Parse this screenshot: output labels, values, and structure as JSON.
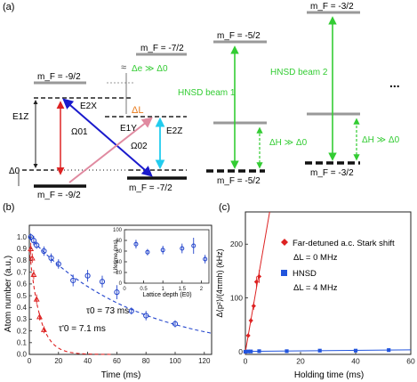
{
  "panel_a": {
    "label": "(a)",
    "levels": {
      "mf_m92_top": "m_F = -9/2",
      "mf_m72_top": "m_F = -7/2",
      "mf_m52_top": "m_F = -5/2",
      "mf_m32_top": "m_F = -3/2",
      "mf_m92_bot": "m_F = -9/2",
      "mf_m72_bot": "m_F = -7/2",
      "mf_m52_bot": "m_F = -5/2",
      "mf_m32_bot": "m_F = -3/2"
    },
    "labels": {
      "delta_e": "Δe ≫ Δ0",
      "delta_l": "ΔL",
      "e1z": "E1Z",
      "e2x": "E2X",
      "e1y": "E1Y",
      "e2z": "E2Z",
      "omega01": "Ω01",
      "omega02": "Ω02",
      "delta0": "Δ0",
      "hnsd1": "HNSD beam 1",
      "hnsd2": "HNSD beam 2",
      "delta_h1": "ΔH ≫ Δ0",
      "delta_h2": "ΔH ≫ Δ0",
      "ellipsis": "..."
    },
    "colors": {
      "green": "#33cc33",
      "blue": "#1a1acc",
      "pink": "#e08aa0",
      "red": "#dd2222",
      "cyan": "#22ccee",
      "orange": "#e87a1a"
    }
  },
  "panel_b": {
    "label": "(b)",
    "ylabel": "Atom number (a.u.)",
    "xlabel": "Time (ms)",
    "tau0": "τ0 = 73 ms",
    "tau0p": "τ'0 = 7.1 ms",
    "inset": {
      "ylabel": "Lifetime (ms)",
      "xlabel": "Lattice depth (E0)"
    }
  },
  "panel_c": {
    "label": "(c)",
    "ylabel": "Δ⟨p²⟩/(4πmh) (kHz)",
    "xlabel": "Holding time (ms)",
    "legend1_title": "Far-detuned a.c. Stark shift",
    "legend1_sub": "ΔL = 0 MHz",
    "legend2_title": "HNSD",
    "legend2_sub": "ΔL = 4 MHz"
  },
  "chart_data": [
    {
      "type": "scatter",
      "panel": "b",
      "xlabel": "Time (ms)",
      "ylabel": "Atom number (a.u.)",
      "xlim": [
        0,
        125
      ],
      "ylim": [
        0,
        1.1
      ],
      "xticks": [
        0,
        20,
        40,
        60,
        80,
        100,
        120
      ],
      "yticks": [
        0.0,
        0.1,
        0.2,
        0.3,
        0.4,
        0.5,
        0.6,
        0.7,
        0.8,
        0.9,
        1.0
      ],
      "series": [
        {
          "marker": "circle",
          "color": "#2244cc",
          "x": [
            1,
            3,
            5,
            10,
            15,
            20,
            30,
            40,
            50,
            60,
            70,
            80,
            100
          ],
          "y": [
            1.0,
            0.97,
            0.93,
            0.88,
            0.82,
            0.77,
            0.63,
            0.67,
            0.62,
            0.53,
            0.37,
            0.33,
            0.26
          ],
          "err": [
            0.03,
            0.04,
            0.03,
            0.04,
            0.04,
            0.04,
            0.05,
            0.05,
            0.05,
            0.06,
            0.03,
            0.04,
            0.03
          ],
          "fit_tau": 73
        },
        {
          "marker": "triangle",
          "color": "#dd2222",
          "x": [
            1,
            2,
            3,
            5,
            7,
            10
          ],
          "y": [
            0.9,
            0.82,
            0.68,
            0.47,
            0.32,
            0.21
          ],
          "err": [
            0.05,
            0.04,
            0.04,
            0.04,
            0.03,
            0.03
          ],
          "fit_tau": 7.1
        }
      ]
    },
    {
      "type": "scatter",
      "panel": "b-inset",
      "xlabel": "Lattice depth (E0)",
      "ylabel": "Lifetime (ms)",
      "xlim": [
        0,
        2.2
      ],
      "ylim": [
        0,
        100
      ],
      "xticks": [
        0,
        0.5,
        1,
        1.5,
        2
      ],
      "yticks": [
        0,
        20,
        40,
        60,
        80,
        100
      ],
      "series": [
        {
          "marker": "circle",
          "color": "#2244cc",
          "x": [
            0.3,
            0.6,
            1.0,
            1.5,
            1.8,
            2.1
          ],
          "y": [
            73,
            58,
            62,
            65,
            70,
            45
          ],
          "err": [
            8,
            6,
            8,
            9,
            15,
            8
          ]
        }
      ]
    },
    {
      "type": "scatter",
      "panel": "c",
      "xlabel": "Holding time (ms)",
      "ylabel": "Δ⟨p²⟩/(4πmh) (kHz)",
      "xlim": [
        0,
        60
      ],
      "ylim": [
        -5,
        260
      ],
      "xticks": [
        0,
        20,
        40,
        60
      ],
      "yticks": [
        0,
        100,
        200
      ],
      "series": [
        {
          "name": "Far-detuned a.c. Stark shift",
          "marker": "diamond",
          "color": "#dd2222",
          "x": [
            0,
            1,
            2,
            3,
            4,
            5
          ],
          "y": [
            0,
            30,
            58,
            85,
            130,
            140
          ],
          "err": [
            2,
            3,
            5,
            7,
            10,
            12
          ]
        },
        {
          "name": "HNSD",
          "marker": "square",
          "color": "#2255dd",
          "x": [
            0,
            1,
            2,
            5,
            15,
            27,
            40,
            52
          ],
          "y": [
            0,
            0.5,
            0.5,
            1,
            1,
            2,
            2,
            3
          ],
          "err": [
            0.5,
            0.5,
            0.5,
            0.8,
            0.8,
            1,
            1,
            1
          ]
        }
      ]
    }
  ]
}
